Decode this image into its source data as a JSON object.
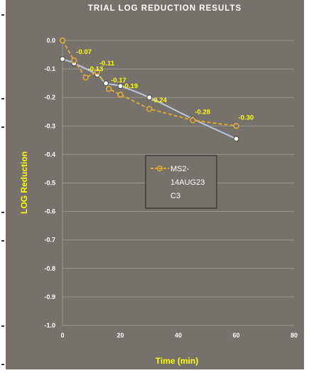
{
  "chart_data": {
    "type": "line",
    "title": "TRIAL LOG REDUCTION  RESULTS",
    "xlabel": "Time (min)",
    "ylabel": "LOG Reduction",
    "xlim": [
      0,
      80
    ],
    "ylim": [
      -1.0,
      0.0
    ],
    "x_ticks": [
      0,
      20,
      40,
      60,
      80
    ],
    "y_ticks": [
      "0.0",
      "-0.1",
      "-0.2",
      "-0.3",
      "-0.4",
      "-0.5",
      "-0.6",
      "-0.7",
      "-0.8",
      "-0.9",
      "-1.0"
    ],
    "grid": "horizontal",
    "legend_position": "center",
    "series": [
      {
        "name": "MS2-14AUG23 C3",
        "legend_lines": [
          "MS2-",
          "14AUG23",
          "C3"
        ],
        "color": "#ddaa33",
        "line_style": "dashed",
        "marker": "open-circle",
        "x": [
          0,
          4,
          8,
          12,
          16,
          20,
          30,
          45,
          60
        ],
        "values": [
          0.0,
          -0.07,
          -0.13,
          -0.11,
          -0.17,
          -0.19,
          -0.24,
          -0.28,
          -0.3
        ],
        "labels": [
          "",
          "-0.07",
          "-0.13",
          "-0.11",
          "-0.17",
          "-0.19",
          "-0.24",
          "-0.28",
          "-0.30"
        ]
      },
      {
        "name": "",
        "color": "#ffffff",
        "line_color": "#b8c8e0",
        "line_style": "solid-smooth",
        "marker": "white-circle",
        "x": [
          0,
          4,
          12,
          15,
          20,
          30,
          45,
          60
        ],
        "values": [
          -0.065,
          -0.08,
          -0.12,
          -0.15,
          -0.16,
          -0.2,
          -0.275,
          -0.345
        ]
      }
    ]
  }
}
